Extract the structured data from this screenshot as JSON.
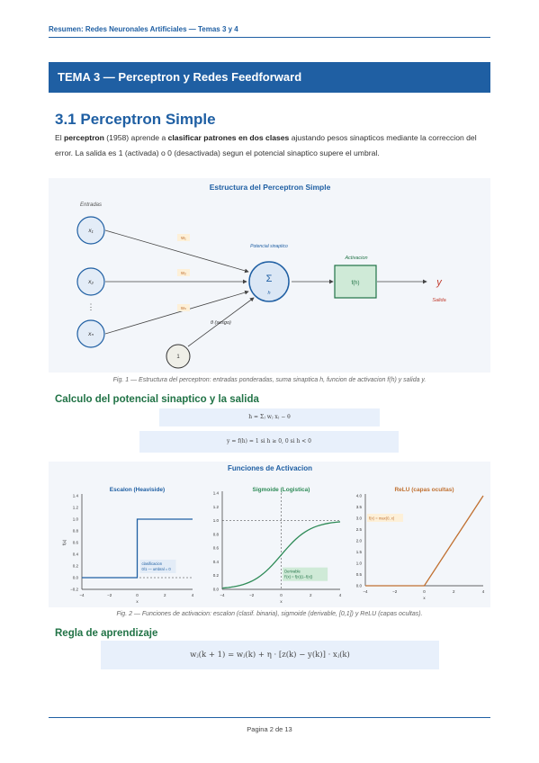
{
  "header": {
    "title": "Resumen: Redes Neuronales Artificiales — Temas 3 y 4"
  },
  "banner": {
    "title": "TEMA 3 — Perceptron y Redes Feedforward"
  },
  "section": {
    "title": "3.1 Perceptron Simple"
  },
  "intro": {
    "p1": "El ",
    "b1": "perceptron",
    "p2": " (1958) aprende a ",
    "b2": "clasificar patrones en dos clases",
    "p3": " ajustando pesos sinapticos mediante la correccion del error. La salida es 1 (activada) o 0 (desactivada) segun el potencial sinaptico supere el umbral."
  },
  "figure1": {
    "title": "Estructura del Perceptron Simple",
    "entradas_label": "Entradas",
    "inputs": [
      "x₁",
      "x₂",
      "xₙ"
    ],
    "weights": [
      "w₁",
      "w₂",
      "wₙ"
    ],
    "dots": "⋮",
    "bias_node": "1",
    "bias_label": "θ (sesgo)",
    "sum_symbol": "Σ",
    "sum_sub": "h",
    "potencial_label": "Potencial sinaptico",
    "activacion_label": "Activacion",
    "activacion_box": "f(h)",
    "output_symbol": "y",
    "salida_label": "Salida",
    "caption": "Fig. 1 — Estructura del perceptron: entradas ponderadas, suma sinaptica h, funcion de activacion f(h) y salida y."
  },
  "subsection1": {
    "title": "Calculo del potencial sinaptico y la salida"
  },
  "equations": {
    "eq1": "h = Σⱼ wⱼ xⱼ − θ",
    "eq2": "y = f(h) = 1 si h ≥ 0,   0 si h < 0",
    "eq3": "wⱼ(k + 1) = wⱼ(k) + η · [z(k) − y(k)] · xⱼ(k)"
  },
  "figure2": {
    "title": "Funciones de Activacion",
    "panels": [
      {
        "title": "Escalon (Heaviside)",
        "ylabel": "f(x)",
        "xlabel": "x",
        "xticks": [
          "−4",
          "−2",
          "0",
          "2",
          "4"
        ],
        "yticks": [
          "−0.2",
          "0.0",
          "0.2",
          "0.4",
          "0.6",
          "0.8",
          "1.0",
          "1.2",
          "1.4"
        ],
        "annotation_l1": "clasificacion",
        "annotation_l2": "0/1 — umbral = 0"
      },
      {
        "title": "Sigmoide (Logistica)",
        "xlabel": "x",
        "xticks": [
          "−4",
          "−2",
          "0",
          "2",
          "4"
        ],
        "yticks": [
          "0.0",
          "0.2",
          "0.4",
          "0.6",
          "0.8",
          "1.0",
          "1.2",
          "1.4"
        ],
        "annotation_l1": "Derivable",
        "annotation_l2": "f'(x) = f(x)(1−f(x))"
      },
      {
        "title": "ReLU (capas ocultas)",
        "xlabel": "x",
        "xticks": [
          "−4",
          "−2",
          "0",
          "2",
          "4"
        ],
        "yticks": [
          "0.0",
          "0.5",
          "1.0",
          "1.5",
          "2.0",
          "2.5",
          "3.0",
          "3.5",
          "4.0"
        ],
        "annotation": "f(x) = max(0, x)"
      }
    ],
    "caption": "Fig. 2 — Funciones de activacion: escalon (clasif. binaria), sigmoide (derivable, [0,1]) y ReLU (capas ocultas)."
  },
  "chart_data": [
    {
      "type": "line",
      "title": "Escalon (Heaviside)",
      "xlabel": "x",
      "ylabel": "f(x)",
      "xlim": [
        -4,
        4
      ],
      "ylim": [
        -0.2,
        1.4
      ],
      "x": [
        -4,
        0,
        0,
        4
      ],
      "y": [
        0,
        0,
        1,
        1
      ],
      "color": "#1f5fa3"
    },
    {
      "type": "line",
      "title": "Sigmoide (Logistica)",
      "xlabel": "x",
      "xlim": [
        -4,
        4
      ],
      "ylim": [
        0.0,
        1.4
      ],
      "x": [
        -4,
        -3,
        -2,
        -1,
        0,
        1,
        2,
        3,
        4
      ],
      "y": [
        0.018,
        0.047,
        0.119,
        0.269,
        0.5,
        0.731,
        0.881,
        0.953,
        0.982
      ],
      "color": "#2e8b57"
    },
    {
      "type": "line",
      "title": "ReLU (capas ocultas)",
      "xlabel": "x",
      "xlim": [
        -4,
        4
      ],
      "ylim": [
        0.0,
        4.0
      ],
      "x": [
        -4,
        0,
        4
      ],
      "y": [
        0,
        0,
        4
      ],
      "color": "#c07030"
    }
  ],
  "subsection2": {
    "title": "Regla de aprendizaje"
  },
  "footer": {
    "page": "Pagina 2 de 13"
  },
  "colors": {
    "primary": "#1f5fa3",
    "green": "#217346",
    "orange": "#c07030",
    "box_green": "#cfead7"
  }
}
